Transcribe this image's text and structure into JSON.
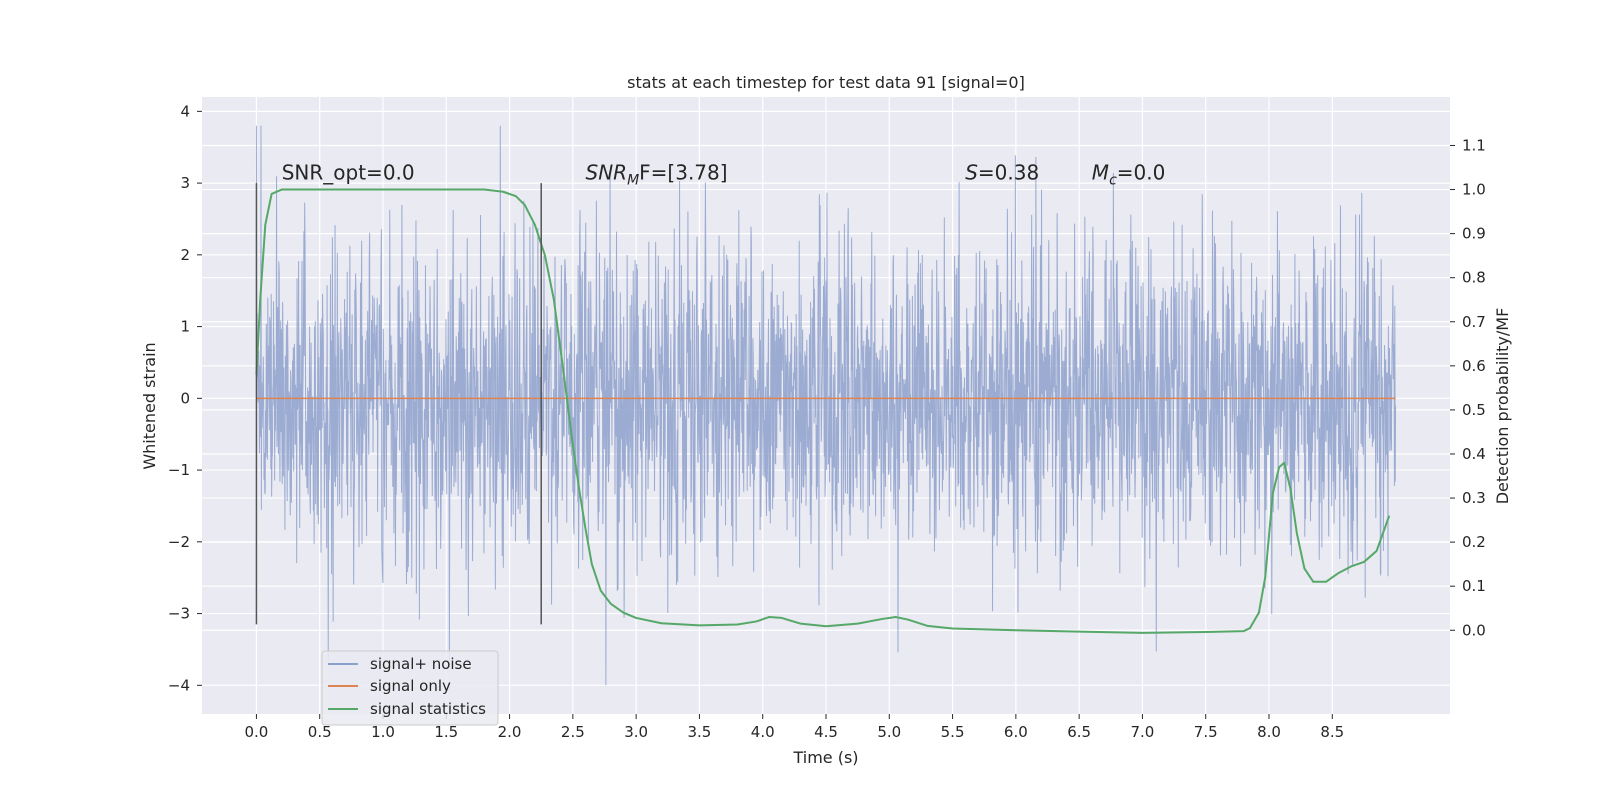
{
  "chart_data": {
    "type": "line",
    "title": "stats at each timestep for test data 91 [signal=0]",
    "xlabel": "Time (s)",
    "ylabel_left": "Whitened strain",
    "ylabel_right": "Detection probability/MF",
    "xlim": [
      -0.43,
      9.43
    ],
    "ylim_left": [
      -4.4,
      4.2
    ],
    "ylim_right": [
      -0.19,
      1.21
    ],
    "xticks": [
      0.0,
      0.5,
      1.0,
      1.5,
      2.0,
      2.5,
      3.0,
      3.5,
      4.0,
      4.5,
      5.0,
      5.5,
      6.0,
      6.5,
      7.0,
      7.5,
      8.0,
      8.5
    ],
    "xtick_labels": [
      "0.0",
      "0.5",
      "1.0",
      "1.5",
      "2.0",
      "2.5",
      "3.0",
      "3.5",
      "4.0",
      "4.5",
      "5.0",
      "5.5",
      "6.0",
      "6.5",
      "7.0",
      "7.5",
      "8.0",
      "8.5"
    ],
    "yticks_left": [
      -4,
      -3,
      -2,
      -1,
      0,
      1,
      2,
      3,
      4
    ],
    "ytick_labels_left": [
      "−4",
      "−3",
      "−2",
      "−1",
      "0",
      "1",
      "2",
      "3",
      "4"
    ],
    "yticks_right": [
      0.0,
      0.1,
      0.2,
      0.3,
      0.4,
      0.5,
      0.6,
      0.7,
      0.8,
      0.9,
      1.0,
      1.1
    ],
    "ytick_labels_right": [
      "0.0",
      "0.1",
      "0.2",
      "0.3",
      "0.4",
      "0.5",
      "0.6",
      "0.7",
      "0.8",
      "0.9",
      "1.0",
      "1.1"
    ],
    "grid": true,
    "legend_position": "lower-left",
    "colors": {
      "plot_bg": "#eaeaf2",
      "grid": "#ffffff",
      "signal_noise": "#8da0cb",
      "signal_only": "#dd8452",
      "statistics": "#55a868",
      "vline": "#555555"
    },
    "noise": {
      "x_start": 0.0,
      "x_end": 9.0,
      "typical_amplitude": 1.1,
      "max": 3.8,
      "min": -4.0
    },
    "series": [
      {
        "name": "signal+ noise",
        "axis": "left",
        "style": "noise"
      },
      {
        "name": "signal only",
        "axis": "left",
        "x": [
          0.0,
          9.0
        ],
        "values": [
          0.0,
          0.0
        ]
      },
      {
        "name": "signal statistics",
        "axis": "right",
        "x": [
          0.0,
          0.03,
          0.07,
          0.12,
          0.2,
          0.4,
          1.0,
          1.5,
          1.8,
          1.95,
          2.05,
          2.12,
          2.2,
          2.28,
          2.35,
          2.42,
          2.5,
          2.55,
          2.6,
          2.65,
          2.72,
          2.8,
          2.9,
          3.0,
          3.2,
          3.5,
          3.8,
          3.95,
          4.05,
          4.15,
          4.3,
          4.5,
          4.75,
          4.95,
          5.05,
          5.15,
          5.3,
          5.5,
          6.0,
          6.5,
          7.0,
          7.5,
          7.8,
          7.85,
          7.92,
          7.97,
          8.03,
          8.08,
          8.12,
          8.17,
          8.22,
          8.28,
          8.35,
          8.45,
          8.55,
          8.65,
          8.75,
          8.85,
          8.95
        ],
        "values": [
          0.58,
          0.75,
          0.92,
          0.99,
          1.0,
          1.0,
          1.0,
          1.0,
          1.0,
          0.995,
          0.985,
          0.965,
          0.92,
          0.85,
          0.75,
          0.6,
          0.42,
          0.32,
          0.23,
          0.15,
          0.09,
          0.06,
          0.04,
          0.028,
          0.016,
          0.011,
          0.013,
          0.02,
          0.03,
          0.028,
          0.015,
          0.009,
          0.015,
          0.026,
          0.03,
          0.024,
          0.01,
          0.004,
          0.0,
          -0.003,
          -0.006,
          -0.004,
          -0.002,
          0.005,
          0.04,
          0.12,
          0.31,
          0.37,
          0.38,
          0.32,
          0.22,
          0.14,
          0.11,
          0.11,
          0.13,
          0.145,
          0.155,
          0.18,
          0.26
        ]
      }
    ],
    "vlines": [
      {
        "x": 0.0,
        "ymin": -3.15,
        "ymax": 3.0
      },
      {
        "x": 2.25,
        "ymin": -3.15,
        "ymax": 3.0
      }
    ],
    "annotations": [
      {
        "x": 0.2,
        "y": 3.05,
        "text": "SNR_opt=0.0",
        "math": false
      },
      {
        "x": 2.6,
        "y": 3.05,
        "base": "SNR",
        "sub": "M",
        "rest": "F=[3.78]",
        "math": true
      },
      {
        "x": 5.6,
        "y": 3.05,
        "base": "S",
        "sub": "",
        "rest": "=0.38",
        "math": true
      },
      {
        "x": 6.6,
        "y": 3.05,
        "base": "M",
        "sub": "c",
        "rest": "=0.0",
        "math": true
      }
    ]
  }
}
